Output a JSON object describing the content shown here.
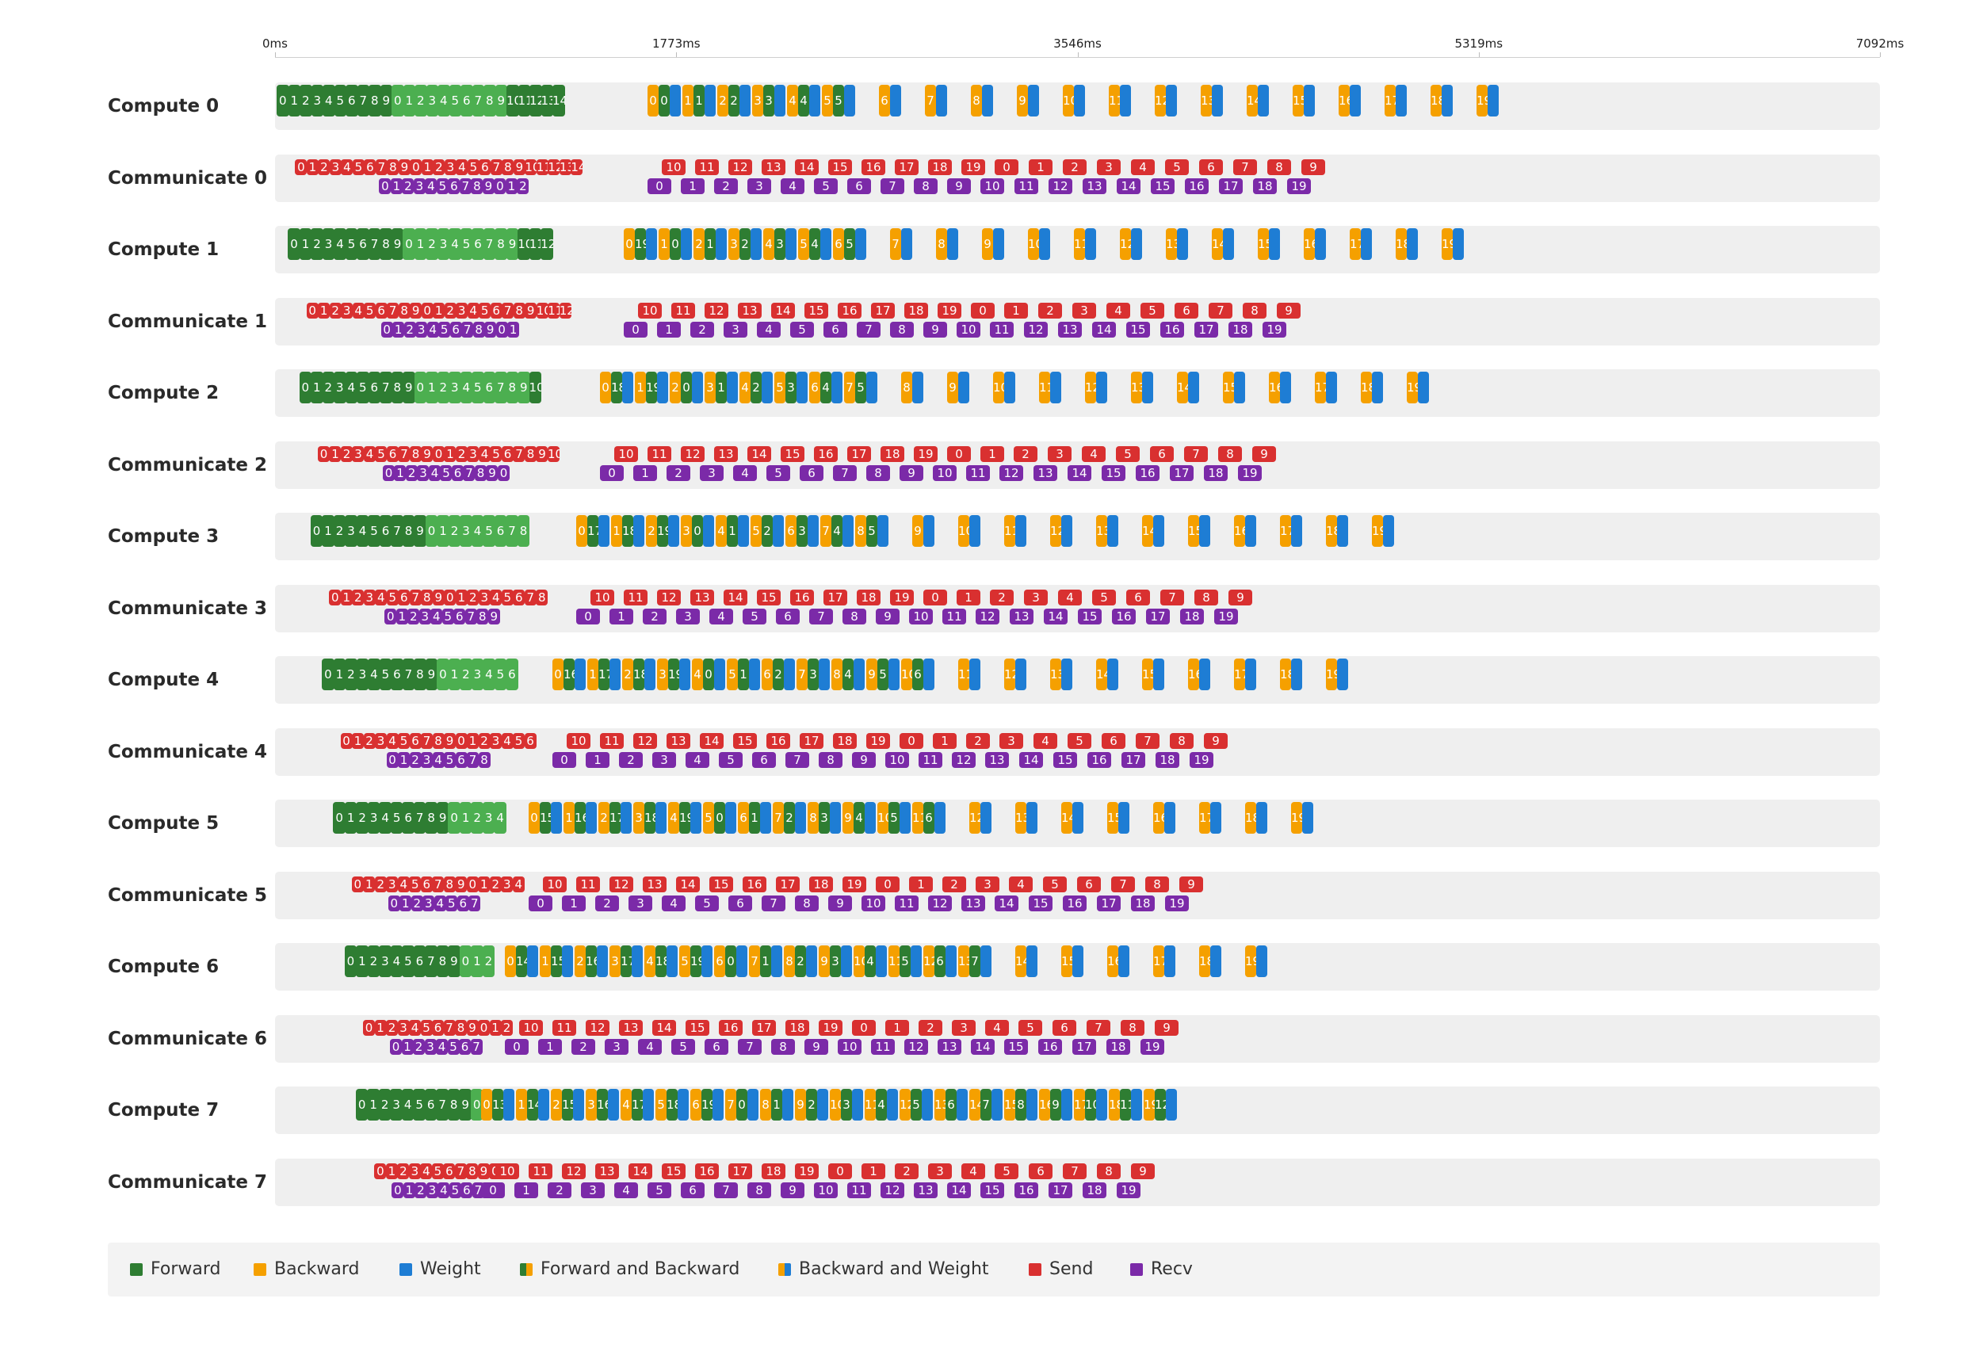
{
  "chart_data": {
    "type": "gantt",
    "title": "",
    "time_unit": "ms",
    "x_range": [
      0,
      7092
    ],
    "ticks": [
      "0ms",
      "1773ms",
      "3546ms",
      "5319ms",
      "7092ms"
    ],
    "lanes": [
      {
        "name": "Compute 0",
        "kind": "compute",
        "start_ms": 0,
        "sequence": "F0-9,F0-9,F10-14 | BW0-19"
      },
      {
        "name": "Communicate 0",
        "kind": "comm",
        "start_ms": 40
      },
      {
        "name": "Compute 1",
        "kind": "compute",
        "start_ms": 50,
        "sequence": "F0-9,F0-9,F10-12 | FB/BW0-19"
      },
      {
        "name": "Communicate 1",
        "kind": "comm",
        "start_ms": 90
      },
      {
        "name": "Compute 2",
        "kind": "compute",
        "start_ms": 100,
        "sequence": "F0-9,F0-9,F10 | FB/BW0-19"
      },
      {
        "name": "Communicate 2",
        "kind": "comm",
        "start_ms": 140
      },
      {
        "name": "Compute 3",
        "kind": "compute",
        "start_ms": 150,
        "sequence": "F0-9,F0-8 | FB/BW0-19"
      },
      {
        "name": "Communicate 3",
        "kind": "comm",
        "start_ms": 190
      },
      {
        "name": "Compute 4",
        "kind": "compute",
        "start_ms": 200,
        "sequence": "F0-9,F0-6 | FB/BW0-19"
      },
      {
        "name": "Communicate 4",
        "kind": "comm",
        "start_ms": 240
      },
      {
        "name": "Compute 5",
        "kind": "compute",
        "start_ms": 250,
        "sequence": "F0-9,F0-4 | FB/BW0-19"
      },
      {
        "name": "Communicate 5",
        "kind": "comm",
        "start_ms": 290
      },
      {
        "name": "Compute 6",
        "kind": "compute",
        "start_ms": 300,
        "sequence": "F0-9,F0-2 | FB/BW0-19"
      },
      {
        "name": "Communicate 6",
        "kind": "comm",
        "start_ms": 340
      },
      {
        "name": "Compute 7",
        "kind": "compute",
        "start_ms": 350,
        "sequence": "F0-9,F0 | FB/BW0-19"
      },
      {
        "name": "Communicate 7",
        "kind": "comm",
        "start_ms": 390
      }
    ],
    "legend": [
      {
        "label": "Forward",
        "color": "#2e7d32"
      },
      {
        "label": "Backward",
        "color": "#f5a000"
      },
      {
        "label": "Weight",
        "color": "#1e7dd4"
      },
      {
        "label": "Forward and Backward",
        "color": "#2e7d32|#f5a000"
      },
      {
        "label": "Backward and Weight",
        "color": "#f5a000|#1e7dd4"
      },
      {
        "label": "Send",
        "color": "#d93030"
      },
      {
        "label": "Recv",
        "color": "#7b2aa8"
      }
    ],
    "micro_batches": 20
  },
  "colors": {
    "forward": "#2e7d32",
    "forward_light": "#4caf50",
    "backward": "#f5a000",
    "weight": "#1e7dd4",
    "send": "#d93030",
    "recv": "#7b2aa8",
    "track": "#efefef"
  }
}
